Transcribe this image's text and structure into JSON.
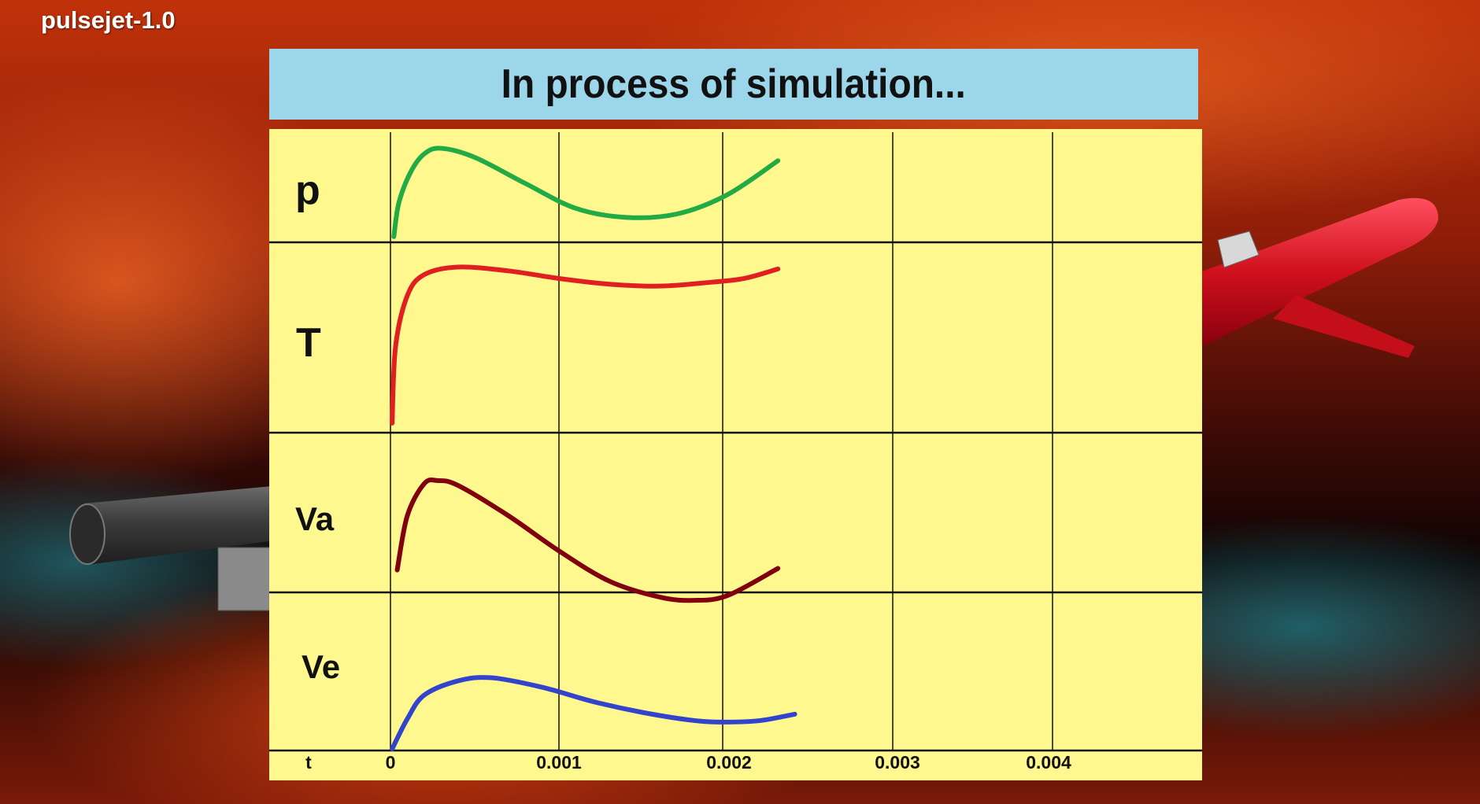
{
  "app": {
    "title": "pulsejet-1.0"
  },
  "banner": {
    "status_text": "In process of simulation..."
  },
  "plot": {
    "rows": [
      {
        "key": "p",
        "label": "p",
        "color": "#22aa44",
        "points": [
          [
            2e-05,
            0.05
          ],
          [
            5e-05,
            0.35
          ],
          [
            0.00012,
            0.62
          ],
          [
            0.0002,
            0.78
          ],
          [
            0.0003,
            0.83
          ],
          [
            0.0005,
            0.75
          ],
          [
            0.0008,
            0.52
          ],
          [
            0.0011,
            0.3
          ],
          [
            0.0014,
            0.22
          ],
          [
            0.0017,
            0.25
          ],
          [
            0.002,
            0.42
          ],
          [
            0.0023,
            0.72
          ]
        ]
      },
      {
        "key": "T",
        "label": "T",
        "color": "#e02020",
        "points": [
          [
            1e-05,
            0.05
          ],
          [
            3e-05,
            0.45
          ],
          [
            0.0001,
            0.72
          ],
          [
            0.0002,
            0.83
          ],
          [
            0.0004,
            0.87
          ],
          [
            0.0007,
            0.85
          ],
          [
            0.001,
            0.81
          ],
          [
            0.0013,
            0.78
          ],
          [
            0.0016,
            0.77
          ],
          [
            0.0019,
            0.79
          ],
          [
            0.0021,
            0.81
          ],
          [
            0.0023,
            0.86
          ]
        ]
      },
      {
        "key": "Va",
        "label": "Va",
        "color": "#800010",
        "points": [
          [
            4e-05,
            0.14
          ],
          [
            0.0001,
            0.48
          ],
          [
            0.0002,
            0.68
          ],
          [
            0.00028,
            0.7
          ],
          [
            0.0004,
            0.67
          ],
          [
            0.0007,
            0.48
          ],
          [
            0.001,
            0.26
          ],
          [
            0.0013,
            0.07
          ],
          [
            0.0016,
            -0.03
          ],
          [
            0.0018,
            -0.05
          ],
          [
            0.002,
            -0.02
          ],
          [
            0.0023,
            0.15
          ]
        ]
      },
      {
        "key": "Ve",
        "label": "Ve",
        "color": "#3344cc",
        "points": [
          [
            1e-05,
            0.01
          ],
          [
            0.0001,
            0.2
          ],
          [
            0.0002,
            0.35
          ],
          [
            0.0004,
            0.44
          ],
          [
            0.0006,
            0.46
          ],
          [
            0.0009,
            0.4
          ],
          [
            0.0012,
            0.31
          ],
          [
            0.0015,
            0.24
          ],
          [
            0.0018,
            0.19
          ],
          [
            0.002,
            0.18
          ],
          [
            0.0022,
            0.19
          ],
          [
            0.0024,
            0.23
          ]
        ]
      }
    ],
    "t_axis": {
      "label": "t",
      "ticks": [
        "0",
        "0.001",
        "0.002",
        "0.003",
        "0.004"
      ]
    }
  },
  "chart_data": {
    "type": "line",
    "xlabel": "t",
    "xlim": [
      0,
      0.0048
    ],
    "x_ticks": [
      "0",
      "0.001",
      "0.002",
      "0.003",
      "0.004"
    ],
    "grid": true,
    "series": [
      {
        "name": "p"
      },
      {
        "name": "T"
      },
      {
        "name": "Va"
      },
      {
        "name": "Ve"
      }
    ]
  }
}
